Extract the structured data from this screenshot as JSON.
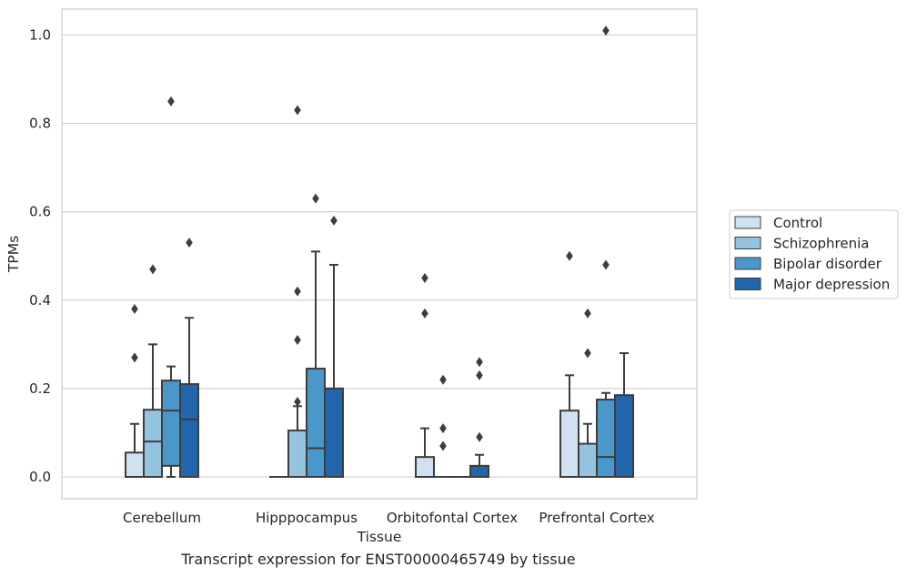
{
  "caption": "Transcript expression for ENST00000465749 by tissue",
  "chart_data": {
    "type": "box",
    "xlabel": "Tissue",
    "ylabel": "TPMs",
    "ylim": [
      -0.05,
      1.06
    ],
    "yticks": [
      "0.0",
      "0.2",
      "0.4",
      "0.6",
      "0.8",
      "1.0"
    ],
    "categories": [
      "Cerebellum",
      "Hipppocampus",
      "Orbitofontal Cortex",
      "Prefrontal Cortex"
    ],
    "grid": "horizontal",
    "legend_position": "right",
    "series": [
      {
        "name": "Control",
        "color": "#d0e1f2",
        "boxes": [
          {
            "q1": 0.0,
            "median": 0.0,
            "q3": 0.055,
            "whisker_low": 0.0,
            "whisker_high": 0.12,
            "outliers": [
              0.27,
              0.38
            ]
          },
          {
            "q1": 0.0,
            "median": 0.0,
            "q3": 0.0,
            "whisker_low": 0.0,
            "whisker_high": 0.0,
            "outliers": []
          },
          {
            "q1": 0.0,
            "median": 0.0,
            "q3": 0.045,
            "whisker_low": 0.0,
            "whisker_high": 0.11,
            "outliers": [
              0.37,
              0.45
            ]
          },
          {
            "q1": 0.0,
            "median": 0.0,
            "q3": 0.15,
            "whisker_low": 0.0,
            "whisker_high": 0.23,
            "outliers": [
              0.5
            ]
          }
        ]
      },
      {
        "name": "Schizophrenia",
        "color": "#94c4df",
        "boxes": [
          {
            "q1": 0.0,
            "median": 0.08,
            "q3": 0.152,
            "whisker_low": 0.0,
            "whisker_high": 0.3,
            "outliers": [
              0.47
            ]
          },
          {
            "q1": 0.0,
            "median": 0.0,
            "q3": 0.105,
            "whisker_low": 0.0,
            "whisker_high": 0.16,
            "outliers": [
              0.17,
              0.31,
              0.42,
              0.83
            ]
          },
          {
            "q1": 0.0,
            "median": 0.0,
            "q3": 0.0,
            "whisker_low": 0.0,
            "whisker_high": 0.0,
            "outliers": [
              0.07,
              0.11,
              0.22
            ]
          },
          {
            "q1": 0.0,
            "median": 0.0,
            "q3": 0.075,
            "whisker_low": 0.0,
            "whisker_high": 0.12,
            "outliers": [
              0.28,
              0.37
            ]
          }
        ]
      },
      {
        "name": "Bipolar disorder",
        "color": "#4a98c9",
        "boxes": [
          {
            "q1": 0.025,
            "median": 0.15,
            "q3": 0.218,
            "whisker_low": 0.0,
            "whisker_high": 0.25,
            "outliers": [
              0.85
            ]
          },
          {
            "q1": 0.0,
            "median": 0.065,
            "q3": 0.245,
            "whisker_low": 0.0,
            "whisker_high": 0.51,
            "outliers": [
              0.63
            ]
          },
          {
            "q1": 0.0,
            "median": 0.0,
            "q3": 0.0,
            "whisker_low": 0.0,
            "whisker_high": 0.0,
            "outliers": []
          },
          {
            "q1": 0.0,
            "median": 0.045,
            "q3": 0.175,
            "whisker_low": 0.0,
            "whisker_high": 0.19,
            "outliers": [
              0.48,
              1.01
            ]
          }
        ]
      },
      {
        "name": "Major depression",
        "color": "#2166ac",
        "boxes": [
          {
            "q1": 0.0,
            "median": 0.13,
            "q3": 0.21,
            "whisker_low": 0.0,
            "whisker_high": 0.36,
            "outliers": [
              0.53
            ]
          },
          {
            "q1": 0.0,
            "median": 0.2,
            "q3": 0.2,
            "whisker_low": 0.0,
            "whisker_high": 0.48,
            "outliers": [
              0.58
            ]
          },
          {
            "q1": 0.0,
            "median": 0.0,
            "q3": 0.025,
            "whisker_low": 0.0,
            "whisker_high": 0.05,
            "outliers": [
              0.09,
              0.23,
              0.26
            ]
          },
          {
            "q1": 0.0,
            "median": 0.0,
            "q3": 0.185,
            "whisker_low": 0.0,
            "whisker_high": 0.28,
            "outliers": []
          }
        ]
      }
    ]
  }
}
